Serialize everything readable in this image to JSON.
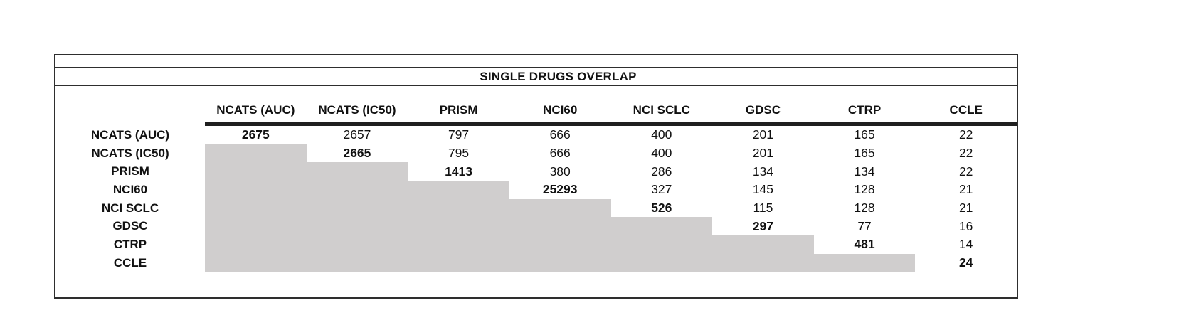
{
  "title": "SINGLE DRUGS OVERLAP",
  "chart_data": {
    "type": "table",
    "title": "SINGLE DRUGS OVERLAP",
    "description_of_layout": "Upper-triangular pairwise overlap matrix; diagonal counts are bold; lower triangle is shaded gray with no values",
    "columns": [
      "NCATS (AUC)",
      "NCATS (IC50)",
      "PRISM",
      "NCI60",
      "NCI SCLC",
      "GDSC",
      "CTRP",
      "CCLE"
    ],
    "rows": [
      {
        "label": "NCATS (AUC)",
        "diag_index": 0,
        "values": [
          "2675",
          "2657",
          "797",
          "666",
          "400",
          "201",
          "165",
          "22"
        ]
      },
      {
        "label": "NCATS (IC50)",
        "diag_index": 1,
        "values": [
          "",
          "2665",
          "795",
          "666",
          "400",
          "201",
          "165",
          "22"
        ]
      },
      {
        "label": "PRISM",
        "diag_index": 2,
        "values": [
          "",
          "",
          "1413",
          "380",
          "286",
          "134",
          "134",
          "22"
        ]
      },
      {
        "label": "NCI60",
        "diag_index": 3,
        "values": [
          "",
          "",
          "",
          "25293",
          "327",
          "145",
          "128",
          "21"
        ]
      },
      {
        "label": "NCI SCLC",
        "diag_index": 4,
        "values": [
          "",
          "",
          "",
          "",
          "526",
          "115",
          "128",
          "21"
        ]
      },
      {
        "label": "GDSC",
        "diag_index": 5,
        "values": [
          "",
          "",
          "",
          "",
          "",
          "297",
          "77",
          "16"
        ]
      },
      {
        "label": "CTRP",
        "diag_index": 6,
        "values": [
          "",
          "",
          "",
          "",
          "",
          "",
          "481",
          "14"
        ]
      },
      {
        "label": "CCLE",
        "diag_index": 7,
        "values": [
          "",
          "",
          "",
          "",
          "",
          "",
          "",
          "24"
        ]
      }
    ],
    "bold_cells": "diagonal",
    "shaded_region": "lower-triangle"
  },
  "colors": {
    "background": "#ffffff",
    "border": "#2e2e2e",
    "shading": "#d0cece",
    "text": "#111111"
  }
}
